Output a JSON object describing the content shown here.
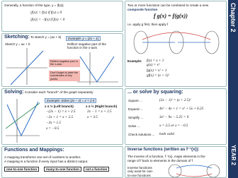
{
  "abs": {
    "intro": "Generally, a function of the type, y = |f(x)|",
    "case1": "|f(x)| = f(x)   if  f(x) ≥ 0",
    "case2": "|f(x)| = −f(x)   if  f(x) < 0"
  },
  "sketching": {
    "heading": "Sketching:",
    "text": "To sketch y = |ax + b|",
    "example": "Example: y = |2x − 1|",
    "step1": "Sketch y = ax + b",
    "step2": "Reflect negative part of the function in the x-axis",
    "note1": "Reflect negative part in the x-axis",
    "note2": "Don't forget to label the coordinates of key points"
  },
  "solving": {
    "heading": "Solving:",
    "text": "Consider each \"branch\" of the graph separately",
    "example": "Example: Solve |2x − 1| = x + 2.5",
    "left": "x ≤ ½  (Left branch)",
    "right": "x ≥ ½  (Right branch)",
    "left_eq": [
      "−(2x − 1) = x + 2.5",
      "−2x + 1 = x + 2.5",
      "−3x = 1.5",
      "x = −0.5"
    ],
    "right_eq": [
      "2x − 1 = x + 2.5",
      "x = 3.5"
    ]
  },
  "mappings": {
    "heading": "Functions and Mappings:",
    "line1": "A mapping transforms one set of numbers to another.",
    "line2": "A mapping is a function if every input has a distinct output.",
    "types": [
      "one-to-one function",
      "many-to-one function",
      "not a function"
    ]
  },
  "composite": {
    "line1": "Two or more functions can be combined to create a new",
    "line2": "composite function",
    "formula": "f g(x) = f(g(x))",
    "line3": "i.e. apply g first, then apply f",
    "example": "Example:",
    "defs": [
      "f(x) = x + 1",
      "g(x) = x²"
    ],
    "results": [
      "fg(x) = x² + 1",
      "gf(x) = (x + 1)²"
    ]
  },
  "squaring": {
    "heading": "... or solve by squaring:",
    "steps": [
      "Square ...",
      "Expand ...",
      "Simplify ...",
      "Solve ...",
      "Check solutions ..."
    ],
    "eqs": [
      "(2x − 1)² = (x + 2.5)²",
      "4x² − 4x + 1 = x² + 5x + 6.25",
      "3x² − 9x − 5.25 = 0",
      "x = 3.5 or x = −0.5",
      "both valid"
    ]
  },
  "inverse": {
    "heading": "Inverse functions (written as f⁻¹(x)):",
    "line1": "The inverse of a function, f⁻¹(x), maps elements in the",
    "line2": "range of f back to elements in the domain of f",
    "note": "Inverse functions only exist for one-to-one functions"
  },
  "strip": {
    "chapter": "Chapter 2",
    "year": "YEAR 2"
  }
}
